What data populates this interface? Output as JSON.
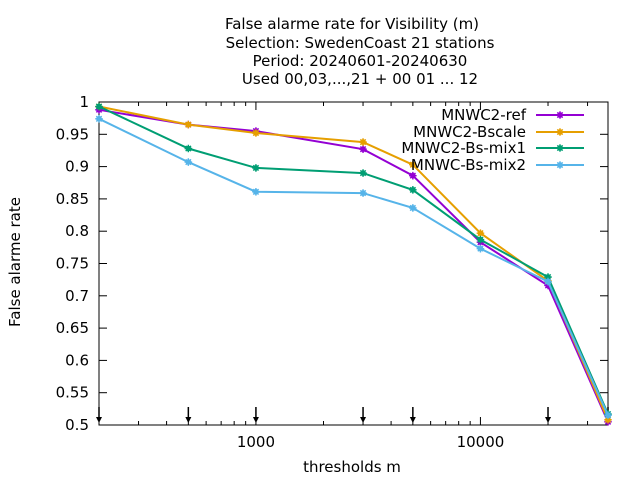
{
  "chart_data": {
    "type": "line",
    "title_lines": [
      "False alarme rate  for Visibility (m)",
      "Selection: SwedenCoast     21 stations",
      "Period: 20240601-20240630",
      "Used 00,03,...,21 + 00 01 ... 12"
    ],
    "xlabel": "thresholds m",
    "ylabel": "False alarme rate",
    "x_scale": "log",
    "xlim": [
      200,
      37000
    ],
    "ylim": [
      0.5,
      1.0
    ],
    "x_ticks": [
      1000,
      10000
    ],
    "x_tick_labels": [
      "1000",
      "10000"
    ],
    "y_ticks": [
      0.5,
      0.55,
      0.6,
      0.65,
      0.7,
      0.75,
      0.8,
      0.85,
      0.9,
      0.95,
      1.0
    ],
    "y_tick_labels": [
      "0.5",
      "0.55",
      "0.6",
      "0.65",
      "0.7",
      "0.75",
      "0.8",
      "0.85",
      "0.9",
      "0.95",
      "1"
    ],
    "threshold_markers": [
      200,
      500,
      1000,
      3000,
      5000,
      20000,
      37000
    ],
    "grid": false,
    "legend_position": "top-right",
    "x": [
      200,
      500,
      1000,
      3000,
      5000,
      10000,
      20000,
      37000
    ],
    "series": [
      {
        "name": "MNWC2-ref",
        "color": "#9400d3",
        "values": [
          0.988,
          0.965,
          0.955,
          0.927,
          0.886,
          0.783,
          0.716,
          0.505
        ]
      },
      {
        "name": "MNWC2-Bscale",
        "color": "#e69f00",
        "values": [
          0.993,
          0.965,
          0.952,
          0.938,
          0.903,
          0.797,
          0.723,
          0.508
        ]
      },
      {
        "name": "MNWC2-Bs-mix1",
        "color": "#009e73",
        "values": [
          0.993,
          0.928,
          0.898,
          0.89,
          0.864,
          0.787,
          0.729,
          0.517
        ]
      },
      {
        "name": "MNWC-Bs-mix2",
        "color": "#56b4e9",
        "values": [
          0.974,
          0.907,
          0.861,
          0.859,
          0.836,
          0.773,
          0.722,
          0.515
        ]
      }
    ]
  }
}
